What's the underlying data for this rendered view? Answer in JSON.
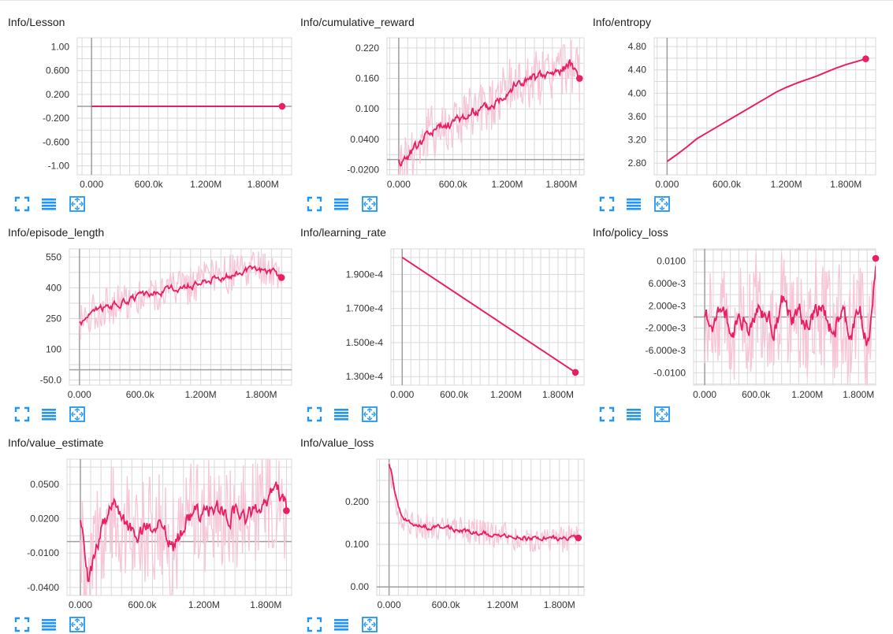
{
  "colors": {
    "accent": "#e91e63",
    "faded": "#f7c5d6",
    "grid": "#d9d9d9",
    "zero_axis": "#9e9e9e",
    "button": "#2196f3"
  },
  "buttons": {
    "expand_icon": "fullscreen-icon",
    "lines_icon": "toggle-lines-icon",
    "fit_icon": "fit-domain-icon"
  },
  "charts": [
    {
      "title": "Info/Lesson",
      "chart_data": {
        "type": "line",
        "series": [
          {
            "values": [
              [
                0,
                0
              ],
              [
                2000000,
                0
              ]
            ]
          }
        ],
        "xlim": [
          -150000,
          2100000
        ],
        "ylim": [
          -1.15,
          1.15
        ],
        "x_ticks": [
          0,
          600000,
          1200000,
          1800000
        ],
        "x_tick_labels": [
          "0.000",
          "600.0k",
          "1.200M",
          "1.800M"
        ],
        "y_ticks": [
          1.0,
          0.6,
          0.2,
          -0.2,
          -0.6,
          -1.0
        ],
        "y_tick_labels": [
          "1.00",
          "0.600",
          "0.200",
          "-0.200",
          "-0.600",
          "-1.00"
        ],
        "grid": true
      }
    },
    {
      "title": "Info/cumulative_reward",
      "chart_data": {
        "type": "line",
        "series": [
          {
            "values": [
              [
                0,
                -0.005
              ],
              [
                100000,
                0.01
              ],
              [
                200000,
                0.03
              ],
              [
                300000,
                0.05
              ],
              [
                400000,
                0.06
              ],
              [
                500000,
                0.065
              ],
              [
                600000,
                0.075
              ],
              [
                700000,
                0.085
              ],
              [
                800000,
                0.09
              ],
              [
                900000,
                0.1
              ],
              [
                1000000,
                0.105
              ],
              [
                1100000,
                0.12
              ],
              [
                1200000,
                0.14
              ],
              [
                1300000,
                0.15
              ],
              [
                1400000,
                0.155
              ],
              [
                1500000,
                0.16
              ],
              [
                1600000,
                0.165
              ],
              [
                1700000,
                0.17
              ],
              [
                1800000,
                0.18
              ],
              [
                1900000,
                0.19
              ],
              [
                2000000,
                0.16
              ]
            ]
          }
        ],
        "xlim": [
          -130000,
          2050000
        ],
        "ylim": [
          -0.03,
          0.24
        ],
        "x_ticks": [
          0,
          600000,
          1200000,
          1800000
        ],
        "x_tick_labels": [
          "0.000",
          "600.0k",
          "1.200M",
          "1.800M"
        ],
        "y_ticks": [
          0.22,
          0.16,
          0.1,
          0.04,
          -0.02
        ],
        "y_tick_labels": [
          "0.220",
          "0.160",
          "0.100",
          "0.0400",
          "-0.0200"
        ],
        "grid": true
      }
    },
    {
      "title": "Info/entropy",
      "chart_data": {
        "type": "line",
        "series": [
          {
            "values": [
              [
                0,
                2.83
              ],
              [
                100000,
                2.95
              ],
              [
                200000,
                3.08
              ],
              [
                300000,
                3.22
              ],
              [
                400000,
                3.32
              ],
              [
                500000,
                3.42
              ],
              [
                600000,
                3.52
              ],
              [
                700000,
                3.62
              ],
              [
                800000,
                3.72
              ],
              [
                900000,
                3.82
              ],
              [
                1000000,
                3.92
              ],
              [
                1100000,
                4.02
              ],
              [
                1200000,
                4.1
              ],
              [
                1300000,
                4.17
              ],
              [
                1400000,
                4.23
              ],
              [
                1500000,
                4.29
              ],
              [
                1600000,
                4.36
              ],
              [
                1700000,
                4.43
              ],
              [
                1800000,
                4.49
              ],
              [
                1900000,
                4.54
              ],
              [
                2000000,
                4.59
              ]
            ]
          }
        ],
        "xlim": [
          -130000,
          2100000
        ],
        "ylim": [
          2.6,
          4.95
        ],
        "x_ticks": [
          0,
          600000,
          1200000,
          1800000
        ],
        "x_tick_labels": [
          "0.000",
          "600.0k",
          "1.200M",
          "1.800M"
        ],
        "y_ticks": [
          4.8,
          4.4,
          4.0,
          3.6,
          3.2,
          2.8
        ],
        "y_tick_labels": [
          "4.80",
          "4.40",
          "4.00",
          "3.60",
          "3.20",
          "2.80"
        ],
        "grid": true
      }
    },
    {
      "title": "Info/episode_length",
      "chart_data": {
        "type": "line",
        "series": [
          {
            "values": [
              [
                0,
                230
              ],
              [
                100000,
                275
              ],
              [
                200000,
                300
              ],
              [
                300000,
                315
              ],
              [
                400000,
                325
              ],
              [
                500000,
                345
              ],
              [
                600000,
                360
              ],
              [
                700000,
                370
              ],
              [
                800000,
                380
              ],
              [
                900000,
                395
              ],
              [
                1000000,
                405
              ],
              [
                1100000,
                415
              ],
              [
                1200000,
                430
              ],
              [
                1300000,
                445
              ],
              [
                1400000,
                455
              ],
              [
                1500000,
                465
              ],
              [
                1600000,
                480
              ],
              [
                1700000,
                485
              ],
              [
                1800000,
                490
              ],
              [
                1900000,
                480
              ],
              [
                2000000,
                450
              ]
            ]
          }
        ],
        "xlim": [
          -100000,
          2100000
        ],
        "ylim": [
          -75,
          590
        ],
        "x_ticks": [
          0,
          600000,
          1200000,
          1800000
        ],
        "x_tick_labels": [
          "0.000",
          "600.0k",
          "1.200M",
          "1.800M"
        ],
        "y_ticks": [
          550,
          400,
          250,
          100,
          -50
        ],
        "y_tick_labels": [
          "550",
          "400",
          "250",
          "100",
          "-50.0"
        ],
        "grid": true
      }
    },
    {
      "title": "Info/learning_rate",
      "chart_data": {
        "type": "line",
        "series": [
          {
            "values": [
              [
                0,
                0.0002
              ],
              [
                2000000,
                0.0001325
              ]
            ]
          }
        ],
        "xlim": [
          -130000,
          2100000
        ],
        "ylim": [
          0.000125,
          0.000205
        ],
        "x_ticks": [
          0,
          600000,
          1200000,
          1800000
        ],
        "x_tick_labels": [
          "0.000",
          "600.0k",
          "1.200M",
          "1.800M"
        ],
        "y_ticks": [
          0.00019,
          0.00017,
          0.00015,
          0.00013
        ],
        "y_tick_labels": [
          "1.900e-4",
          "1.700e-4",
          "1.500e-4",
          "1.300e-4"
        ],
        "grid": true
      }
    },
    {
      "title": "Info/policy_loss",
      "chart_data": {
        "type": "line",
        "series": [
          {
            "values": [
              [
                0,
                0.0
              ],
              [
                100000,
                -0.002
              ],
              [
                200000,
                0.003
              ],
              [
                300000,
                -0.004
              ],
              [
                400000,
                0.001
              ],
              [
                500000,
                -0.003
              ],
              [
                600000,
                0.002
              ],
              [
                700000,
                0.0
              ],
              [
                800000,
                -0.002
              ],
              [
                900000,
                0.003
              ],
              [
                1000000,
                -0.001
              ],
              [
                1100000,
                0.001
              ],
              [
                1200000,
                -0.003
              ],
              [
                1300000,
                0.002
              ],
              [
                1400000,
                0.0
              ],
              [
                1500000,
                -0.002
              ],
              [
                1600000,
                0.001
              ],
              [
                1700000,
                -0.004
              ],
              [
                1800000,
                0.002
              ],
              [
                1900000,
                -0.006
              ],
              [
                2000000,
                0.0105
              ]
            ]
          }
        ],
        "xlim": [
          -130000,
          2000000
        ],
        "ylim": [
          -0.0122,
          0.0122
        ],
        "x_ticks": [
          0,
          600000,
          1200000,
          1800000
        ],
        "x_tick_labels": [
          "0.000",
          "600.0k",
          "1.200M",
          "1.800M"
        ],
        "y_ticks": [
          0.01,
          0.006,
          0.002,
          -0.002,
          -0.006,
          -0.01
        ],
        "y_tick_labels": [
          "0.0100",
          "6.000e-3",
          "2.000e-3",
          "-2.000e-3",
          "-6.000e-3",
          "-0.0100"
        ],
        "grid": true
      }
    },
    {
      "title": "Info/value_estimate",
      "chart_data": {
        "type": "line",
        "series": [
          {
            "values": [
              [
                0,
                0.02
              ],
              [
                50000,
                -0.045
              ],
              [
                100000,
                -0.025
              ],
              [
                200000,
                0.01
              ],
              [
                300000,
                0.03
              ],
              [
                400000,
                0.02
              ],
              [
                500000,
                0.005
              ],
              [
                600000,
                0.01
              ],
              [
                700000,
                0.015
              ],
              [
                800000,
                0.01
              ],
              [
                900000,
                -0.005
              ],
              [
                1000000,
                0.015
              ],
              [
                1100000,
                0.025
              ],
              [
                1200000,
                0.02
              ],
              [
                1300000,
                0.03
              ],
              [
                1400000,
                0.025
              ],
              [
                1500000,
                0.025
              ],
              [
                1600000,
                0.02
              ],
              [
                1700000,
                0.03
              ],
              [
                1800000,
                0.035
              ],
              [
                1900000,
                0.045
              ],
              [
                2000000,
                0.027
              ]
            ]
          }
        ],
        "xlim": [
          -130000,
          2050000
        ],
        "ylim": [
          -0.047,
          0.072
        ],
        "x_ticks": [
          0,
          600000,
          1200000,
          1800000
        ],
        "x_tick_labels": [
          "0.000",
          "600.0k",
          "1.200M",
          "1.800M"
        ],
        "y_ticks": [
          0.05,
          0.02,
          -0.01,
          -0.04
        ],
        "y_tick_labels": [
          "0.0500",
          "0.0200",
          "-0.0100",
          "-0.0400"
        ],
        "grid": true
      }
    },
    {
      "title": "Info/value_loss",
      "chart_data": {
        "type": "line",
        "series": [
          {
            "values": [
              [
                0,
                0.29
              ],
              [
                50000,
                0.22
              ],
              [
                100000,
                0.18
              ],
              [
                150000,
                0.16
              ],
              [
                200000,
                0.15
              ],
              [
                300000,
                0.145
              ],
              [
                400000,
                0.14
              ],
              [
                500000,
                0.14
              ],
              [
                600000,
                0.14
              ],
              [
                700000,
                0.135
              ],
              [
                800000,
                0.13
              ],
              [
                900000,
                0.13
              ],
              [
                1000000,
                0.125
              ],
              [
                1100000,
                0.12
              ],
              [
                1200000,
                0.12
              ],
              [
                1300000,
                0.118
              ],
              [
                1400000,
                0.115
              ],
              [
                1500000,
                0.115
              ],
              [
                1600000,
                0.113
              ],
              [
                1700000,
                0.113
              ],
              [
                1800000,
                0.112
              ],
              [
                1900000,
                0.115
              ],
              [
                2000000,
                0.115
              ]
            ]
          }
        ],
        "xlim": [
          -130000,
          2060000
        ],
        "ylim": [
          -0.02,
          0.3
        ],
        "x_ticks": [
          0,
          600000,
          1200000,
          1800000
        ],
        "x_tick_labels": [
          "0.000",
          "600.0k",
          "1.200M",
          "1.800M"
        ],
        "y_ticks": [
          0.2,
          0.1,
          0.0
        ],
        "y_tick_labels": [
          "0.200",
          "0.100",
          "0.00"
        ],
        "grid": true
      }
    }
  ]
}
